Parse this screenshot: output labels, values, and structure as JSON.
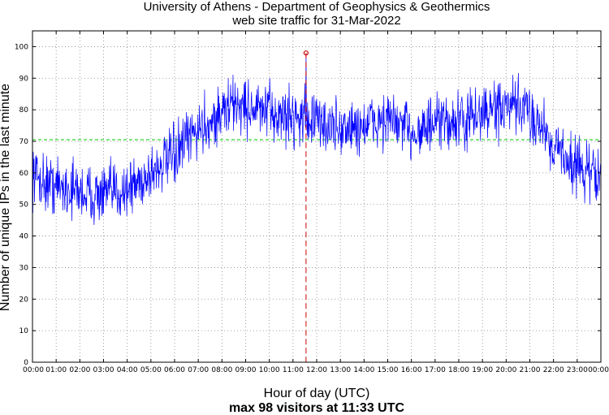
{
  "chart_data": {
    "type": "line",
    "title": "University of Athens - Department of Geophysics & Geothermics",
    "subtitle": "web site traffic for 31-Mar-2022",
    "xlabel": "Hour of day (UTC)",
    "ylabel": "Number of unique IPs in the last minute",
    "footnote": "max 98 visitors at 11:33 UTC",
    "xlim": [
      0,
      24
    ],
    "ylim": [
      0,
      105
    ],
    "x_ticks": [
      "00:00",
      "01:00",
      "02:00",
      "03:00",
      "04:00",
      "05:00",
      "06:00",
      "07:00",
      "08:00",
      "09:00",
      "10:00",
      "11:00",
      "12:00",
      "13:00",
      "14:00",
      "15:00",
      "16:00",
      "17:00",
      "18:00",
      "19:00",
      "20:00",
      "21:00",
      "22:00",
      "23:00",
      "00:00"
    ],
    "y_ticks": [
      0,
      10,
      20,
      30,
      40,
      50,
      60,
      70,
      80,
      90,
      100
    ],
    "grid": true,
    "series": [
      {
        "color": "#0000ff",
        "x": [
          0,
          0.5,
          1,
          1.5,
          2,
          2.5,
          3,
          3.5,
          4,
          4.5,
          5,
          5.5,
          6,
          6.5,
          7,
          7.5,
          8,
          8.5,
          9,
          9.5,
          10,
          10.5,
          11,
          11.5,
          12,
          12.5,
          13,
          13.5,
          14,
          14.5,
          15,
          15.5,
          16,
          16.5,
          17,
          17.5,
          18,
          18.5,
          19,
          19.5,
          20,
          20.5,
          21,
          21.5,
          22,
          22.5,
          23,
          23.5,
          24
        ],
        "y": [
          60,
          57,
          56,
          55,
          54,
          53,
          53,
          54,
          55,
          57,
          60,
          63,
          65,
          70,
          74,
          76,
          79,
          82,
          81,
          80,
          79,
          78,
          78,
          78,
          76,
          75,
          74,
          74,
          75,
          76,
          77,
          75,
          73,
          74,
          75,
          76,
          76,
          77,
          79,
          80,
          80,
          81,
          79,
          75,
          69,
          65,
          62,
          60,
          59
        ]
      }
    ],
    "mean_line": {
      "value": 70.5,
      "color": "#00cc00"
    },
    "max_marker": {
      "x": 11.55,
      "y": 98,
      "color": "#cc0000"
    }
  }
}
